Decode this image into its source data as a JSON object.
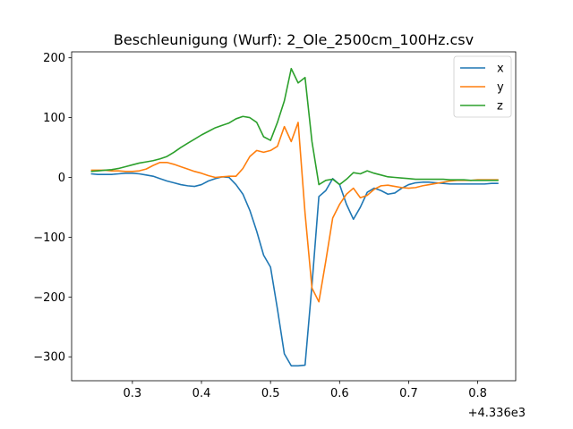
{
  "chart_data": {
    "type": "line",
    "title": "Beschleunigung (Wurf): 2_Ole_2500cm_100Hz.csv",
    "xlabel": "",
    "ylabel": "",
    "x_offset_label": "+4.336e3",
    "xlim": [
      0.212,
      0.855
    ],
    "ylim": [
      -340,
      210
    ],
    "xticks": [
      0.3,
      0.4,
      0.5,
      0.6,
      0.7,
      0.8
    ],
    "xtick_labels": [
      "0.3",
      "0.4",
      "0.5",
      "0.6",
      "0.7",
      "0.8"
    ],
    "yticks": [
      -300,
      -200,
      -100,
      0,
      100,
      200
    ],
    "ytick_labels": [
      "−300",
      "−200",
      "−100",
      "0",
      "100",
      "200"
    ],
    "legend_position": "top-right",
    "x": [
      0.24,
      0.25,
      0.26,
      0.27,
      0.28,
      0.29,
      0.3,
      0.31,
      0.32,
      0.33,
      0.34,
      0.35,
      0.36,
      0.37,
      0.38,
      0.39,
      0.4,
      0.41,
      0.42,
      0.43,
      0.44,
      0.45,
      0.46,
      0.47,
      0.48,
      0.49,
      0.5,
      0.51,
      0.52,
      0.53,
      0.54,
      0.55,
      0.56,
      0.57,
      0.58,
      0.59,
      0.6,
      0.61,
      0.62,
      0.63,
      0.64,
      0.65,
      0.66,
      0.67,
      0.68,
      0.69,
      0.7,
      0.71,
      0.72,
      0.73,
      0.74,
      0.75,
      0.76,
      0.77,
      0.78,
      0.79,
      0.8,
      0.81,
      0.82,
      0.83
    ],
    "series": [
      {
        "name": "x",
        "color": "#1f77b4",
        "values": [
          6,
          5,
          5,
          5,
          6,
          7,
          7,
          6,
          4,
          2,
          -2,
          -6,
          -9,
          -12,
          -14,
          -15,
          -12,
          -6,
          -2,
          1,
          0,
          -12,
          -28,
          -55,
          -90,
          -130,
          -150,
          -220,
          -295,
          -315,
          -315,
          -314,
          -180,
          -32,
          -22,
          -2,
          -12,
          -45,
          -70,
          -50,
          -25,
          -18,
          -22,
          -28,
          -26,
          -18,
          -12,
          -9,
          -8,
          -8,
          -9,
          -10,
          -11,
          -11,
          -11,
          -11,
          -11,
          -11,
          -10,
          -10
        ]
      },
      {
        "name": "y",
        "color": "#ff7f0e",
        "values": [
          12,
          12,
          12,
          11,
          11,
          10,
          10,
          11,
          14,
          20,
          25,
          25,
          22,
          18,
          14,
          10,
          7,
          3,
          0,
          1,
          2,
          2,
          15,
          35,
          45,
          42,
          45,
          52,
          85,
          60,
          92,
          -60,
          -185,
          -208,
          -140,
          -68,
          -45,
          -28,
          -18,
          -34,
          -30,
          -20,
          -14,
          -13,
          -15,
          -17,
          -18,
          -17,
          -14,
          -12,
          -10,
          -8,
          -6,
          -5,
          -5,
          -5,
          -4,
          -4,
          -4,
          -4
        ]
      },
      {
        "name": "z",
        "color": "#2ca02c",
        "values": [
          10,
          11,
          12,
          13,
          15,
          18,
          21,
          24,
          26,
          28,
          31,
          35,
          42,
          50,
          57,
          64,
          71,
          77,
          83,
          87,
          91,
          98,
          102,
          100,
          92,
          68,
          62,
          92,
          128,
          182,
          158,
          167,
          60,
          -12,
          -5,
          -3,
          -12,
          -3,
          8,
          6,
          11,
          7,
          4,
          1,
          0,
          -1,
          -2,
          -3,
          -3,
          -3,
          -3,
          -3,
          -4,
          -4,
          -4,
          -5,
          -5,
          -5,
          -5,
          -5
        ]
      }
    ]
  }
}
